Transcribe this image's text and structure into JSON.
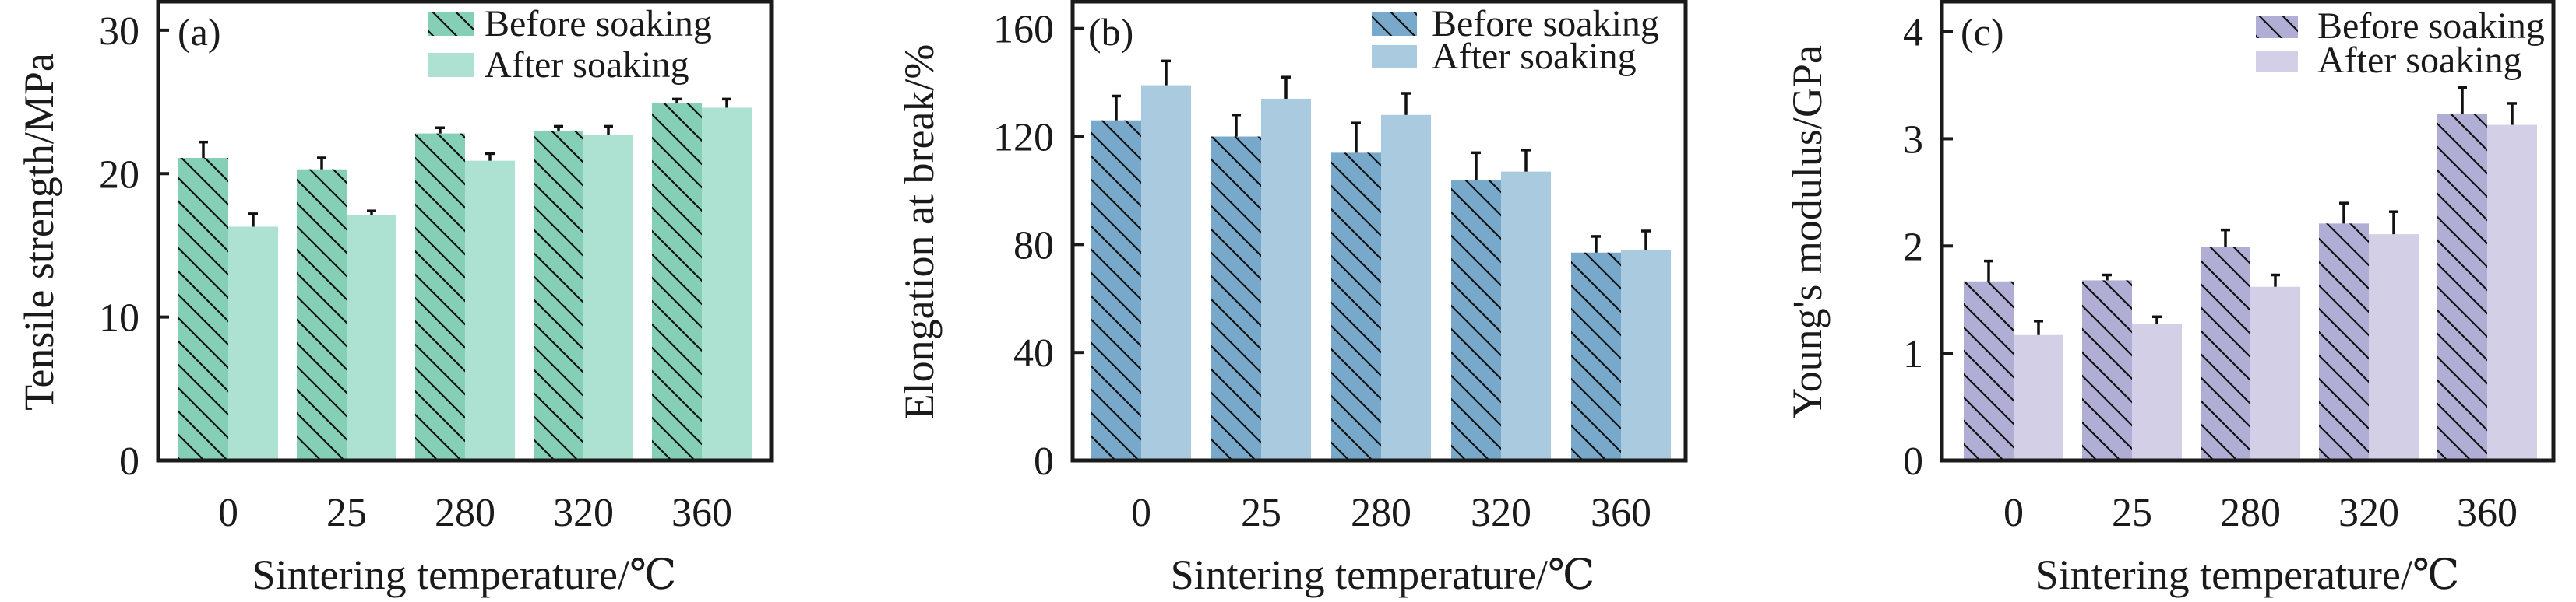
{
  "chart_data": [
    {
      "type": "bar",
      "panel_tag": "(a)",
      "title": "",
      "xlabel": "Sintering temperature/℃",
      "ylabel": "Tensile strength/MPa",
      "categories": [
        "0",
        "25",
        "280",
        "320",
        "360"
      ],
      "ylim": [
        0,
        32
      ],
      "yticks": [
        0,
        10,
        20,
        30
      ],
      "grid": false,
      "legend_position": "top-right",
      "series": [
        {
          "name": "Before soaking",
          "color": "#84cfb5",
          "hatched": true,
          "values": [
            21.1,
            20.3,
            22.8,
            23.0,
            24.9
          ],
          "errors": [
            1.1,
            0.8,
            0.4,
            0.3,
            0.3
          ]
        },
        {
          "name": "After soaking",
          "color": "#ade1d1",
          "hatched": false,
          "values": [
            16.3,
            17.1,
            20.9,
            22.7,
            24.6
          ],
          "errors": [
            0.9,
            0.3,
            0.5,
            0.6,
            0.6
          ]
        }
      ]
    },
    {
      "type": "bar",
      "panel_tag": "(b)",
      "title": "",
      "xlabel": "Sintering temperature/℃",
      "ylabel": "Elongation at break/%",
      "categories": [
        "0",
        "25",
        "280",
        "320",
        "360"
      ],
      "ylim": [
        0,
        170
      ],
      "yticks": [
        0,
        40,
        80,
        120,
        160
      ],
      "grid": false,
      "legend_position": "top-right",
      "series": [
        {
          "name": "Before soaking",
          "color": "#78a9cb",
          "hatched": true,
          "values": [
            126,
            120,
            114,
            104,
            77
          ],
          "errors": [
            9,
            8,
            11,
            10,
            6
          ]
        },
        {
          "name": "After soaking",
          "color": "#aacadf",
          "hatched": false,
          "values": [
            139,
            134,
            128,
            107,
            78
          ],
          "errors": [
            9,
            8,
            8,
            8,
            7
          ]
        }
      ]
    },
    {
      "type": "bar",
      "panel_tag": "(c)",
      "title": "",
      "xlabel": "Sintering temperature/℃",
      "ylabel": "Young's modulus/GPa",
      "categories": [
        "0",
        "25",
        "280",
        "320",
        "360"
      ],
      "ylim": [
        0,
        4.28
      ],
      "yticks": [
        0,
        1,
        2,
        3,
        4
      ],
      "grid": false,
      "legend_position": "top-right",
      "series": [
        {
          "name": "Before soaking",
          "color": "#b1aed6",
          "hatched": true,
          "values": [
            1.67,
            1.68,
            1.99,
            2.21,
            3.23
          ],
          "errors": [
            0.19,
            0.05,
            0.16,
            0.19,
            0.25
          ]
        },
        {
          "name": "After soaking",
          "color": "#d3cfe6",
          "hatched": false,
          "values": [
            1.17,
            1.27,
            1.62,
            2.11,
            3.13
          ],
          "errors": [
            0.13,
            0.07,
            0.11,
            0.21,
            0.2
          ]
        }
      ]
    }
  ]
}
